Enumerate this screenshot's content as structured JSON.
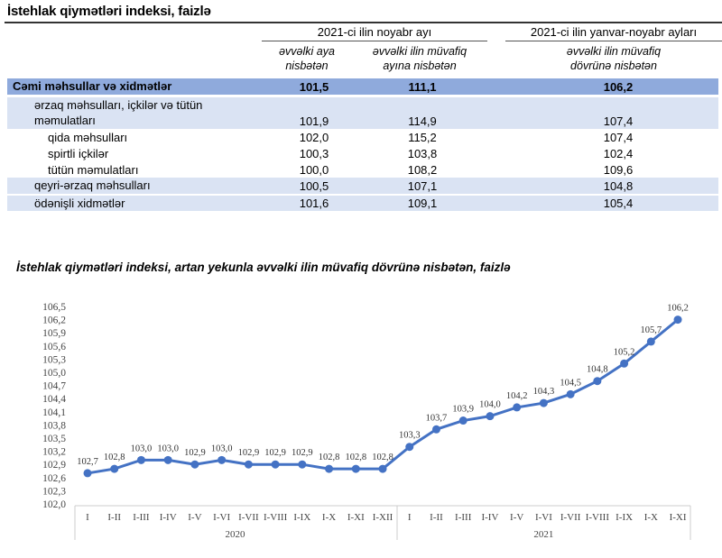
{
  "table": {
    "title": "İstehlak qiymətləri indeksi, faizlə",
    "group_headers": [
      "2021-ci ilin noyabr ayı",
      "2021-ci ilin yanvar-noyabr ayları"
    ],
    "sub_headers": [
      [
        "əvvəlki aya",
        "nisbətən"
      ],
      [
        "əvvəlki ilin müvafiq",
        "ayına nisbətən"
      ],
      [
        "əvvəlki ilin müvafiq",
        "dövrünə nisbətən"
      ]
    ],
    "rows": [
      {
        "label": "Cəmi məhsullar və xidmətlər",
        "label2": "",
        "values": [
          "101,5",
          "111,1",
          "106,2"
        ]
      },
      {
        "label": "ərzaq məhsulları, içkilər və tütün",
        "label2": "məmulatları",
        "values": [
          "101,9",
          "114,9",
          "107,4"
        ]
      },
      {
        "label": "qida məhsulları",
        "label2": "",
        "values": [
          "102,0",
          "115,2",
          "107,4"
        ]
      },
      {
        "label": "spirtli içkilər",
        "label2": "",
        "values": [
          "100,3",
          "103,8",
          "102,4"
        ]
      },
      {
        "label": "tütün məmulatları",
        "label2": "",
        "values": [
          "100,0",
          "108,2",
          "109,6"
        ]
      },
      {
        "label": "qeyri-ərzaq məhsulları",
        "label2": "",
        "values": [
          "100,5",
          "107,1",
          "104,8"
        ]
      },
      {
        "label": "ödənişli xidmətlər",
        "label2": "",
        "values": [
          "101,6",
          "109,1",
          "105,4"
        ]
      }
    ],
    "colors": {
      "total_row": "#8faadc",
      "highlight_row": "#dae3f3"
    }
  },
  "chart_data": {
    "type": "line",
    "title": "İstehlak qiymətləri indeksi, artan yekunla əvvəlki ilin müvafiq dövrünə nisbətən, faizlə",
    "categories": [
      "I",
      "I-II",
      "I-III",
      "I-IV",
      "I-V",
      "I-VI",
      "I-VII",
      "I-VIII",
      "I-IX",
      "I-X",
      "I-XI",
      "I-XII",
      "I",
      "I-II",
      "I-III",
      "I-IV",
      "I-V",
      "I-VI",
      "I-VII",
      "I-VIII",
      "I-IX",
      "I-X",
      "I-XI"
    ],
    "groups": [
      {
        "label": "2020",
        "count": 12
      },
      {
        "label": "2021",
        "count": 11
      }
    ],
    "values": [
      102.7,
      102.8,
      103.0,
      103.0,
      102.9,
      103.0,
      102.9,
      102.9,
      102.9,
      102.8,
      102.8,
      102.8,
      103.3,
      103.7,
      103.9,
      104.0,
      104.2,
      104.3,
      104.5,
      104.8,
      105.2,
      105.7,
      106.2
    ],
    "data_labels": [
      "102,7",
      "102,8",
      "103,0",
      "103,0",
      "102,9",
      "103,0",
      "102,9",
      "102,9",
      "102,9",
      "102,8",
      "102,8",
      "102,8",
      "103,3",
      "103,7",
      "103,9",
      "104,0",
      "104,2",
      "104,3",
      "104,5",
      "104,8",
      "105,2",
      "105,7",
      "106,2"
    ],
    "y_ticks": [
      "102,0",
      "102,3",
      "102,6",
      "102,9",
      "103,2",
      "103,5",
      "103,8",
      "104,1",
      "104,4",
      "104,7",
      "105,0",
      "105,3",
      "105,6",
      "105,9",
      "106,2",
      "106,5"
    ],
    "ylim": [
      102.0,
      106.5
    ],
    "grid": false,
    "color": "#4472c4"
  }
}
